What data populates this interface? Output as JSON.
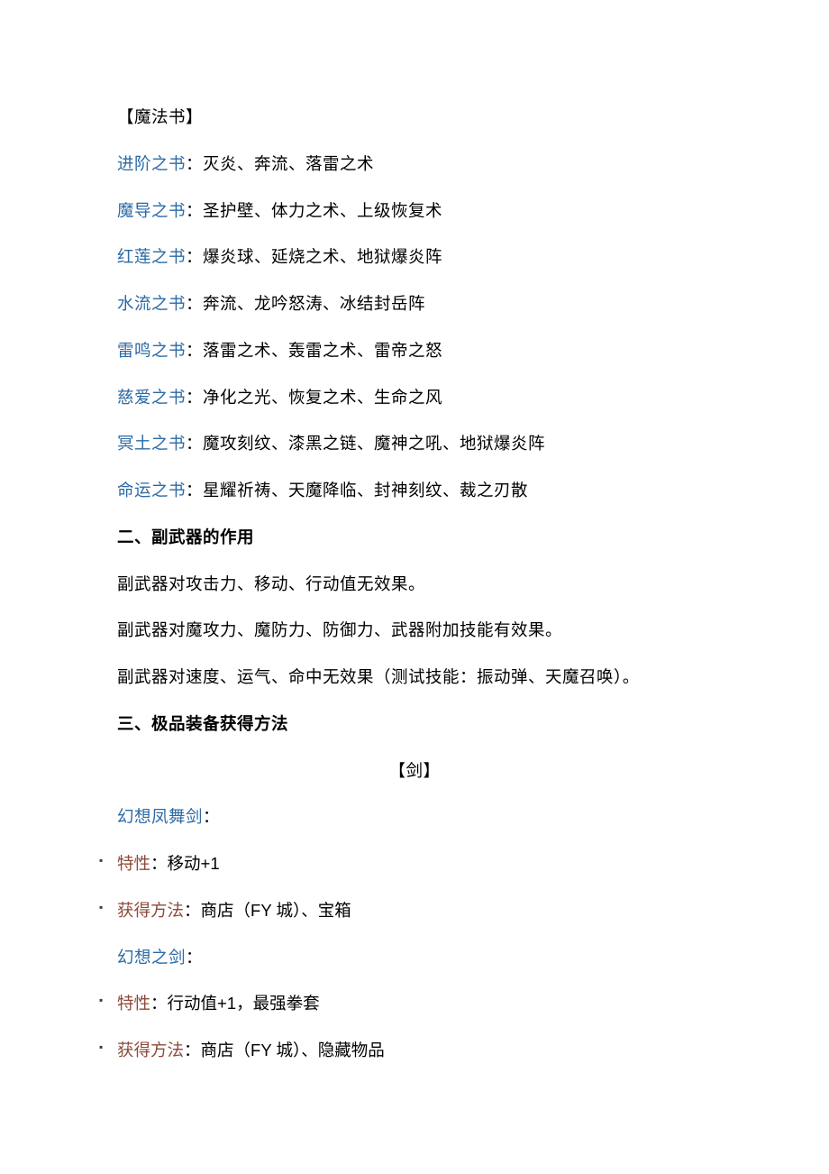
{
  "magic_header": "【魔法书】",
  "books": [
    {
      "name": "进阶之书",
      "desc": "：灭炎、奔流、落雷之术"
    },
    {
      "name": "魔导之书",
      "desc": "：圣护壁、体力之术、上级恢复术"
    },
    {
      "name": "红莲之书",
      "desc": "：爆炎球、延烧之术、地狱爆炎阵"
    },
    {
      "name": "水流之书",
      "desc": "：奔流、龙吟怒涛、冰结封岳阵"
    },
    {
      "name": "雷鸣之书",
      "desc": "：落雷之术、轰雷之术、雷帝之怒"
    },
    {
      "name": "慈爱之书",
      "desc": "：净化之光、恢复之术、生命之风"
    },
    {
      "name": "冥土之书",
      "desc": "：魔攻刻纹、漆黑之链、魔神之吼、地狱爆炎阵"
    },
    {
      "name": "命运之书",
      "desc": "：星耀祈祷、天魔降临、封神刻纹、裁之刃散"
    }
  ],
  "section2_title": "二、副武器的作用",
  "section2_lines": [
    "副武器对攻击力、移动、行动值无效果。",
    "副武器对魔攻力、魔防力、防御力、武器附加技能有效果。",
    "副武器对速度、运气、命中无效果（测试技能：振动弹、天魔召唤）。"
  ],
  "section3_title": "三、极品装备获得方法",
  "sword_header": "【剑】",
  "items": [
    {
      "name": "幻想凤舞剑",
      "trait_label": "特性",
      "trait_value": "：移动+1",
      "method_label": "获得方法",
      "method_value": "：商店（FY 城）、宝箱"
    },
    {
      "name": "幻想之剑",
      "trait_label": "特性",
      "trait_value": "：行动值+1，最强拳套",
      "method_label": "获得方法",
      "method_value": "：商店（FY 城）、隐藏物品"
    }
  ],
  "colon": "："
}
